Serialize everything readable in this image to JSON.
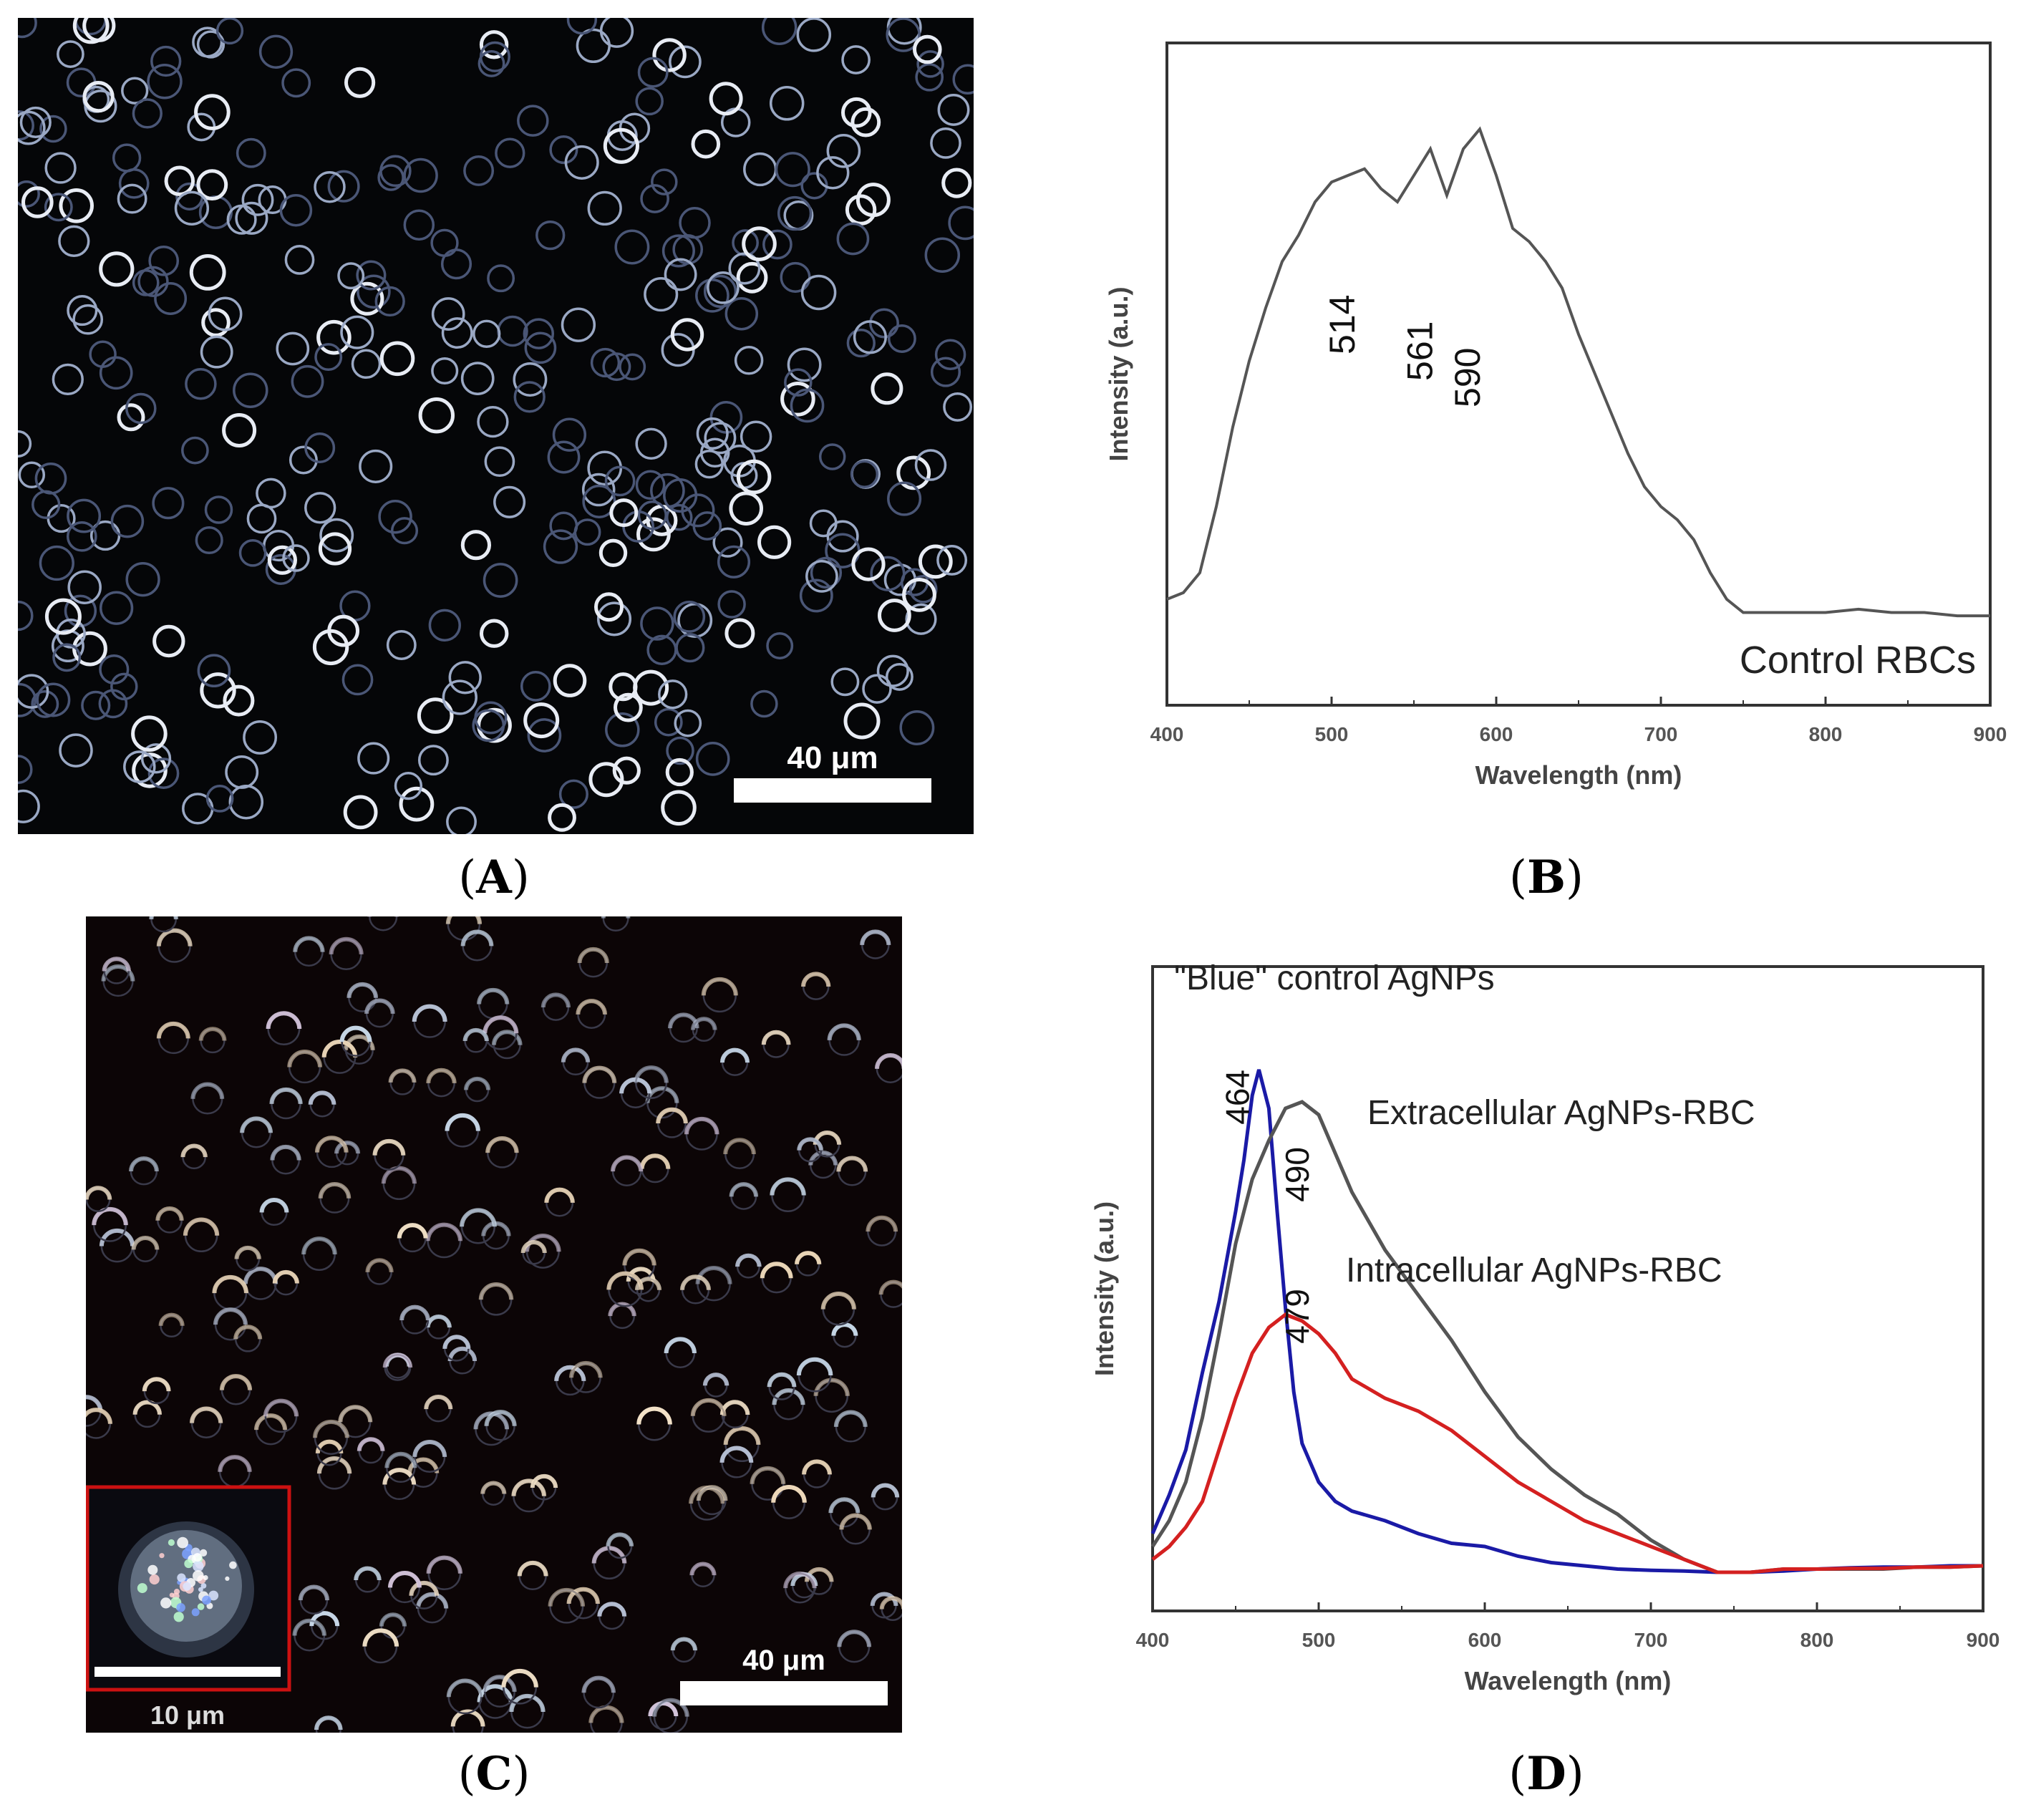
{
  "panels": {
    "A": {
      "label": "A",
      "scale_bar": "40 μm"
    },
    "B": {
      "label": "B"
    },
    "C": {
      "label": "C",
      "scale_bar": "40 μm",
      "inset_scale_bar": "10 μm"
    },
    "D": {
      "label": "D"
    }
  },
  "colors": {
    "gray_series": "#555555",
    "blue_series": "#1a1aa6",
    "red_series": "#d42020",
    "inset_border": "#cc1111"
  },
  "chart_data": [
    {
      "id": "B",
      "type": "line",
      "title": "",
      "xlabel": "Wavelength (nm)",
      "ylabel": "Intensity (a.u.)",
      "xlim": [
        400,
        900
      ],
      "ylim": [
        0,
        1
      ],
      "xticks": [
        400,
        500,
        600,
        700,
        800,
        900
      ],
      "legend_text": "Control RBCs",
      "annotations": [
        {
          "text": "514",
          "x": 514,
          "y": 0.62
        },
        {
          "text": "561",
          "x": 561,
          "y": 0.58
        },
        {
          "text": "590",
          "x": 590,
          "y": 0.54
        }
      ],
      "series": [
        {
          "name": "Control RBCs",
          "color": "#555555",
          "x": [
            400,
            410,
            420,
            430,
            440,
            450,
            460,
            470,
            480,
            490,
            500,
            510,
            520,
            530,
            540,
            550,
            560,
            570,
            580,
            590,
            600,
            610,
            620,
            630,
            640,
            650,
            660,
            670,
            680,
            690,
            700,
            710,
            720,
            730,
            740,
            750,
            760,
            780,
            800,
            820,
            840,
            860,
            880,
            900
          ],
          "y": [
            0.16,
            0.17,
            0.2,
            0.3,
            0.42,
            0.52,
            0.6,
            0.67,
            0.71,
            0.76,
            0.79,
            0.8,
            0.81,
            0.78,
            0.76,
            0.8,
            0.84,
            0.77,
            0.84,
            0.87,
            0.8,
            0.72,
            0.7,
            0.67,
            0.63,
            0.56,
            0.5,
            0.44,
            0.38,
            0.33,
            0.3,
            0.28,
            0.25,
            0.2,
            0.16,
            0.14,
            0.14,
            0.14,
            0.14,
            0.145,
            0.14,
            0.14,
            0.135,
            0.135
          ]
        }
      ]
    },
    {
      "id": "D",
      "type": "line",
      "title": "",
      "xlabel": "Wavelength (nm)",
      "ylabel": "Intensity (a.u.)",
      "xlim": [
        400,
        900
      ],
      "ylim": [
        0,
        1
      ],
      "xticks": [
        400,
        500,
        600,
        700,
        800,
        900
      ],
      "annotations": [
        {
          "text": "464",
          "x": 458,
          "y": 0.84
        },
        {
          "text": "490",
          "x": 494,
          "y": 0.72
        },
        {
          "text": "479",
          "x": 494,
          "y": 0.5
        }
      ],
      "series": [
        {
          "name": "\"Blue\" control AgNPs",
          "color": "#1a1aa6",
          "x": [
            400,
            410,
            420,
            430,
            440,
            450,
            455,
            460,
            464,
            470,
            475,
            480,
            485,
            490,
            500,
            510,
            520,
            540,
            560,
            580,
            600,
            620,
            640,
            660,
            680,
            700,
            720,
            740,
            760,
            780,
            800,
            820,
            840,
            860,
            880,
            900
          ],
          "y": [
            0.12,
            0.18,
            0.25,
            0.37,
            0.48,
            0.62,
            0.7,
            0.8,
            0.84,
            0.78,
            0.62,
            0.47,
            0.34,
            0.26,
            0.2,
            0.17,
            0.155,
            0.14,
            0.12,
            0.105,
            0.1,
            0.085,
            0.075,
            0.07,
            0.065,
            0.063,
            0.062,
            0.06,
            0.06,
            0.062,
            0.065,
            0.067,
            0.068,
            0.068,
            0.07,
            0.07
          ]
        },
        {
          "name": "Extracellular AgNPs-RBC",
          "color": "#555555",
          "x": [
            400,
            410,
            420,
            430,
            440,
            450,
            460,
            470,
            480,
            490,
            500,
            510,
            520,
            540,
            560,
            580,
            600,
            620,
            640,
            660,
            680,
            700,
            720,
            740,
            760,
            780,
            800,
            820,
            840,
            860,
            880,
            900
          ],
          "y": [
            0.1,
            0.14,
            0.2,
            0.3,
            0.43,
            0.57,
            0.67,
            0.73,
            0.78,
            0.79,
            0.77,
            0.71,
            0.65,
            0.56,
            0.49,
            0.42,
            0.34,
            0.27,
            0.22,
            0.18,
            0.15,
            0.11,
            0.08,
            0.06,
            0.06,
            0.065,
            0.065,
            0.065,
            0.065,
            0.068,
            0.068,
            0.07
          ]
        },
        {
          "name": "Intracellular AgNPs-RBC",
          "color": "#d42020",
          "x": [
            400,
            410,
            420,
            430,
            440,
            450,
            460,
            470,
            480,
            490,
            500,
            510,
            520,
            540,
            560,
            580,
            600,
            620,
            640,
            660,
            680,
            700,
            720,
            740,
            760,
            780,
            800,
            820,
            840,
            860,
            880,
            900
          ],
          "y": [
            0.08,
            0.1,
            0.13,
            0.17,
            0.25,
            0.33,
            0.4,
            0.44,
            0.46,
            0.45,
            0.43,
            0.4,
            0.36,
            0.33,
            0.31,
            0.28,
            0.24,
            0.2,
            0.17,
            0.14,
            0.12,
            0.1,
            0.08,
            0.06,
            0.06,
            0.065,
            0.065,
            0.066,
            0.066,
            0.068,
            0.068,
            0.07
          ]
        }
      ],
      "legend_labels": [
        {
          "text": "\"Blue\" control AgNPs"
        },
        {
          "text": "Extracellular AgNPs-RBC"
        },
        {
          "text": "Intracellular AgNPs-RBC"
        }
      ]
    }
  ]
}
